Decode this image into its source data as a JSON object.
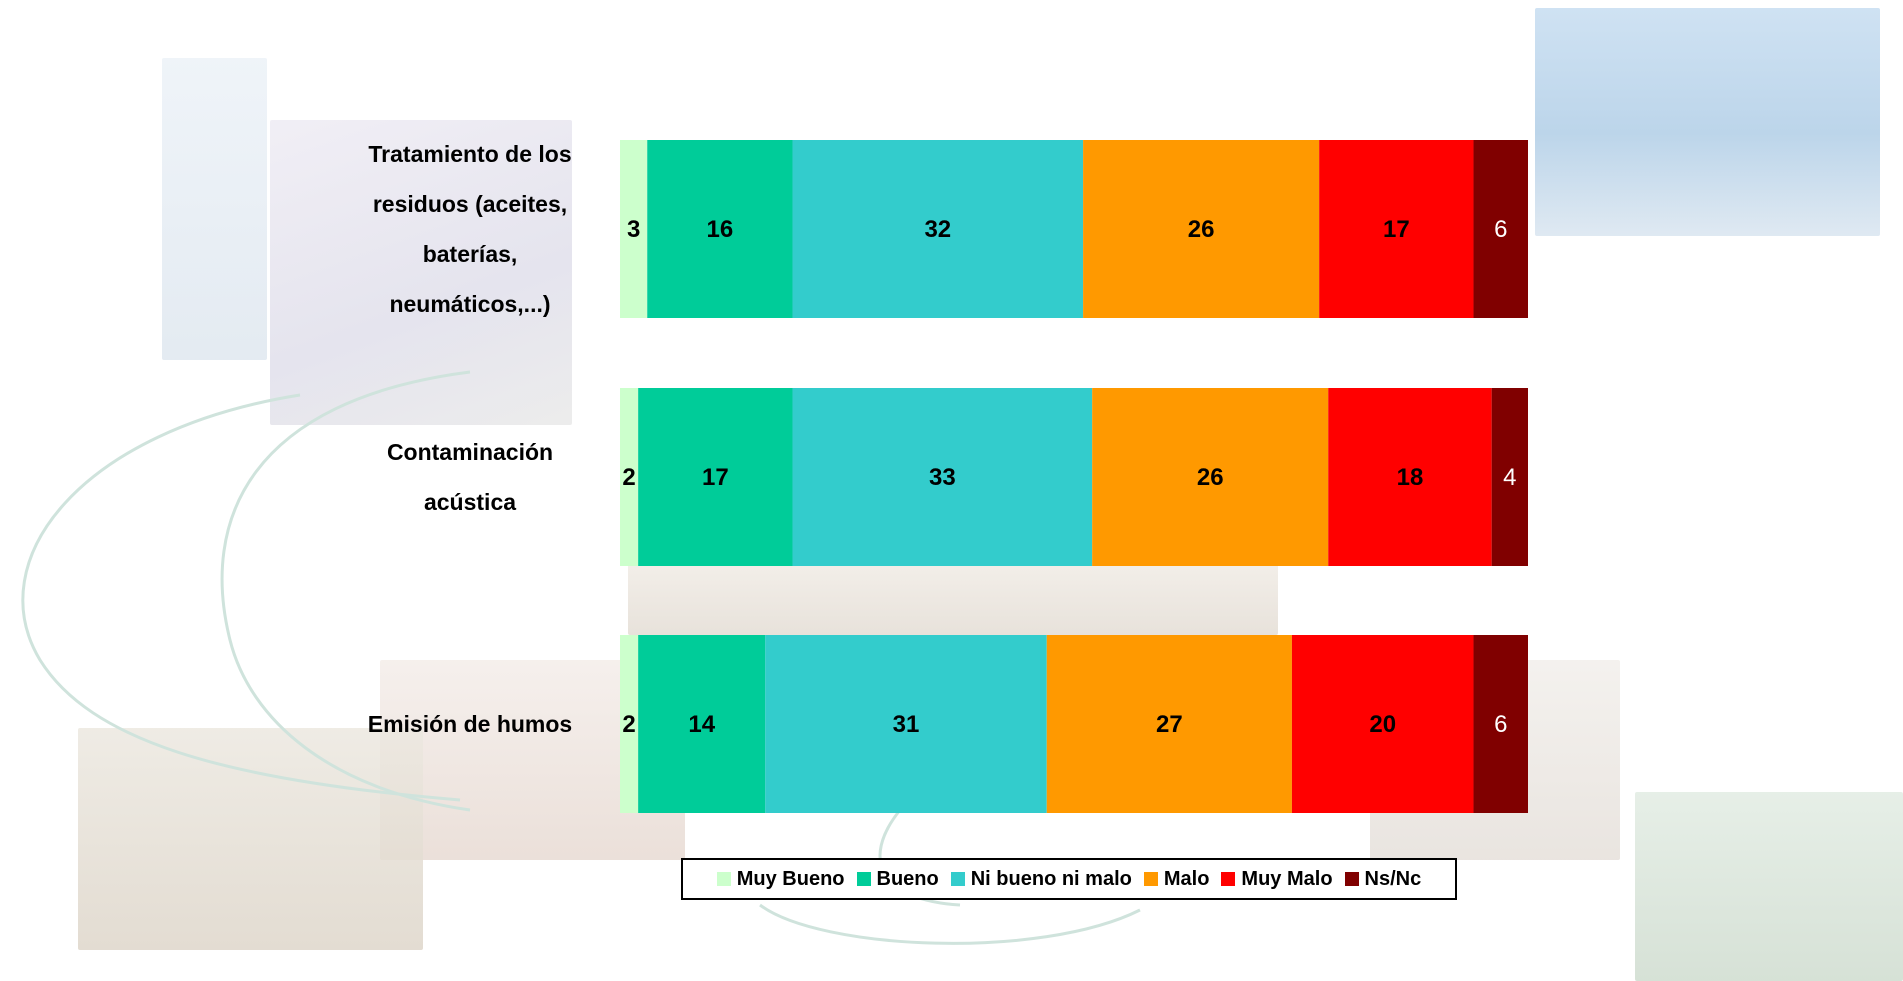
{
  "chart_data": {
    "type": "bar",
    "orientation": "horizontal",
    "stacked": true,
    "percent": true,
    "categories": [
      "Tratamiento de los residuos (aceites, baterías, neumáticos,...)",
      "Contaminación acústica",
      "Emisión de humos"
    ],
    "category_lines": [
      [
        "Tratamiento de los",
        "residuos (aceites,",
        "baterías,",
        "neumáticos,...)"
      ],
      [
        "Contaminación",
        "acústica"
      ],
      [
        "Emisión de humos"
      ]
    ],
    "series": [
      {
        "name": "Muy Bueno",
        "color": "#ccffcc",
        "values": [
          3,
          2,
          2
        ]
      },
      {
        "name": "Bueno",
        "color": "#00cc99",
        "values": [
          16,
          17,
          14
        ]
      },
      {
        "name": "Ni bueno ni malo",
        "color": "#33cccc",
        "values": [
          32,
          33,
          31
        ]
      },
      {
        "name": "Malo",
        "color": "#ff9900",
        "values": [
          26,
          26,
          27
        ]
      },
      {
        "name": "Muy Malo",
        "color": "#ff0000",
        "values": [
          17,
          18,
          20
        ]
      },
      {
        "name": "Ns/Nc",
        "color": "#800000",
        "values": [
          6,
          4,
          6
        ]
      }
    ],
    "label_colors": [
      "#000000",
      "#000000",
      "#000000",
      "#000000",
      "#000000",
      "#ffffff"
    ],
    "legend_position": "bottom",
    "grid": false
  }
}
